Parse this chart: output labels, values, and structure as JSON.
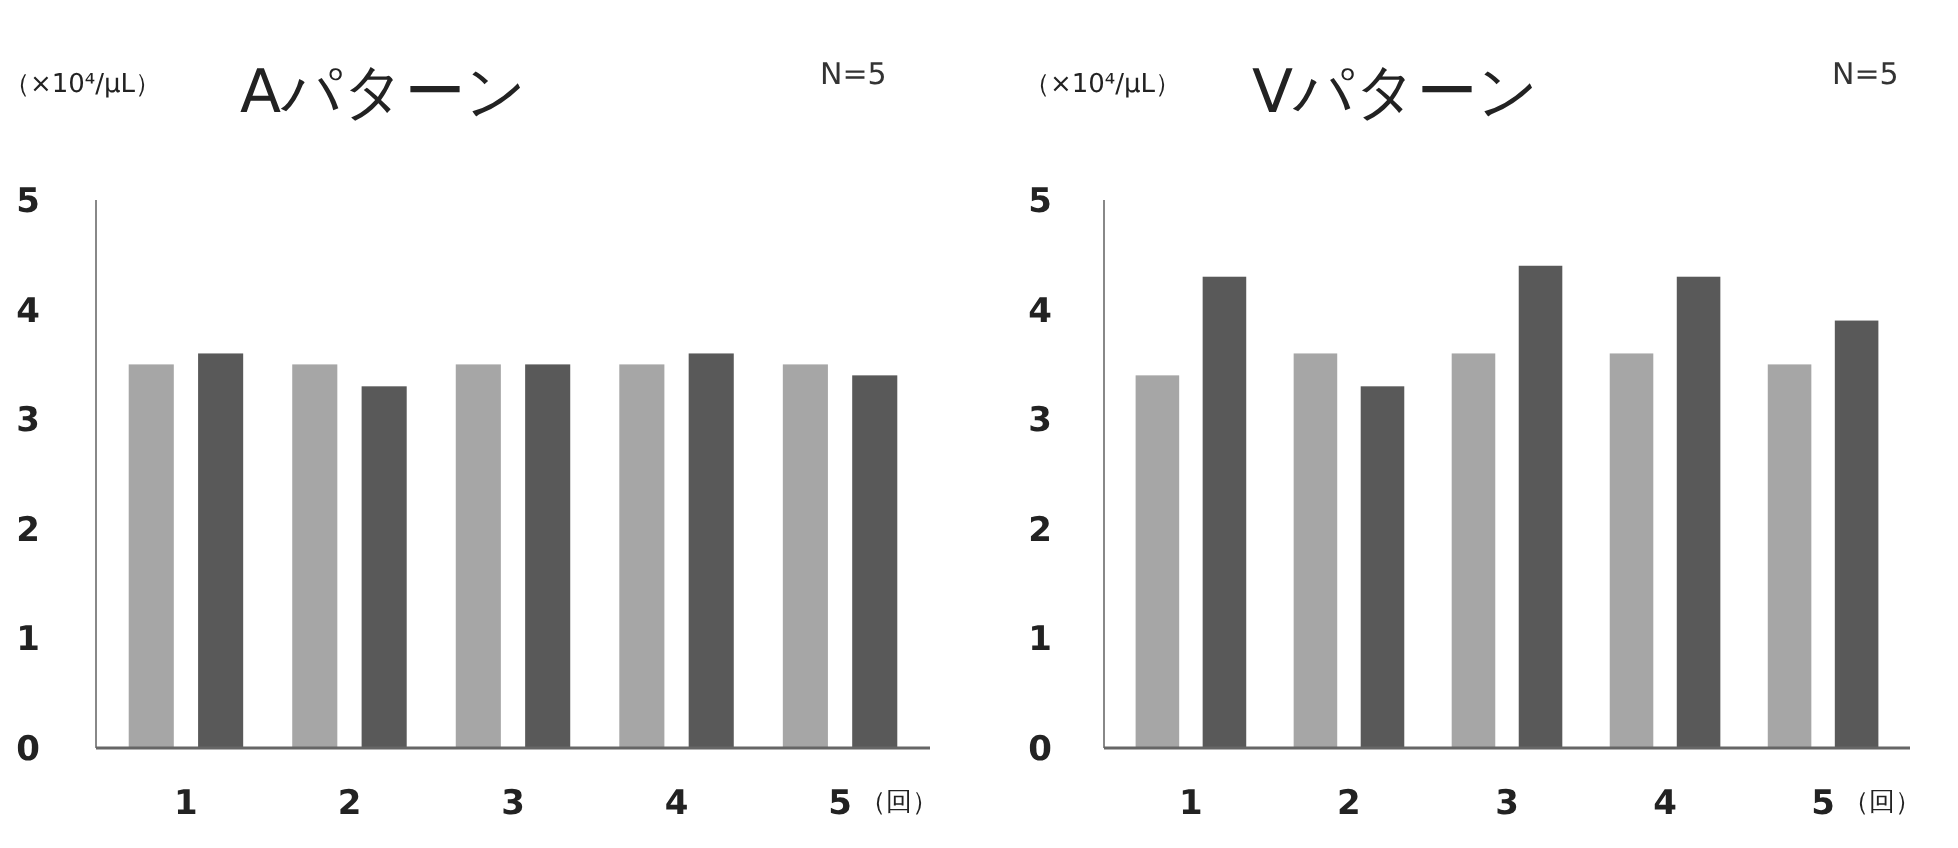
{
  "chart_data": [
    {
      "type": "bar",
      "title": "Aパターン",
      "ylabel": "（×10⁴/μL）",
      "xlabel": "（回）",
      "annotations": [
        "N=5"
      ],
      "categories": [
        "1",
        "2",
        "3",
        "4",
        "5"
      ],
      "ylim": [
        0,
        5
      ],
      "yticks": [
        0,
        1,
        2,
        3,
        4,
        5
      ],
      "grid": false,
      "series": [
        {
          "color": "#a6a6a6",
          "values": [
            3.5,
            3.5,
            3.5,
            3.5,
            3.5
          ]
        },
        {
          "color": "#595959",
          "values": [
            3.6,
            3.3,
            3.5,
            3.6,
            3.4
          ]
        }
      ]
    },
    {
      "type": "bar",
      "title": "Vパターン",
      "ylabel": "（×10⁴/μL）",
      "xlabel": "（回）",
      "annotations": [
        "N=5"
      ],
      "categories": [
        "1",
        "2",
        "3",
        "4",
        "5"
      ],
      "ylim": [
        0,
        5
      ],
      "yticks": [
        0,
        1,
        2,
        3,
        4,
        5
      ],
      "grid": false,
      "series": [
        {
          "color": "#a6a6a6",
          "values": [
            3.4,
            3.6,
            3.6,
            3.6,
            3.5
          ]
        },
        {
          "color": "#595959",
          "values": [
            4.3,
            3.3,
            4.4,
            4.3,
            3.9
          ]
        }
      ]
    }
  ]
}
